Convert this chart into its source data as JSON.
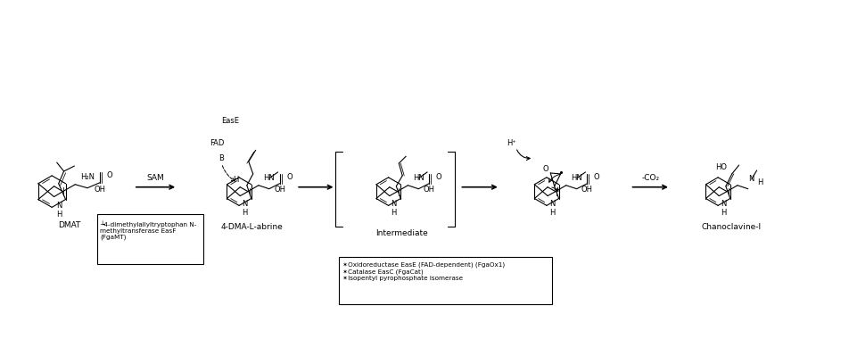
{
  "bg_color": "#ffffff",
  "fig_width": 9.53,
  "fig_height": 3.8,
  "lw": 0.8,
  "small_fs": 6.0,
  "tiny_fs": 5.2,
  "box1_text": "┶4-dimethylallyltryptophan N-\nmethyltransferase EasF\n(FgaMT)",
  "box2_text": "✶Oxidoreductase EasE (FAD-dependent) (FgaOx1)\n✶Catalase EasC (FgaCat)\n✶Isopentyl pyrophosphate isomerase",
  "sam_label": "SAM",
  "co2_label": "-CO₂",
  "easE_label": "EasE",
  "fad_label": "FAD",
  "b_label": "B",
  "h_label": "H",
  "hplus_label": "H⁺",
  "dmat_label": "DMAT",
  "abrine_label": "4-DMA-L-abrine",
  "inter_label": "Intermediate",
  "chano_label": "Chanoclavine-I"
}
